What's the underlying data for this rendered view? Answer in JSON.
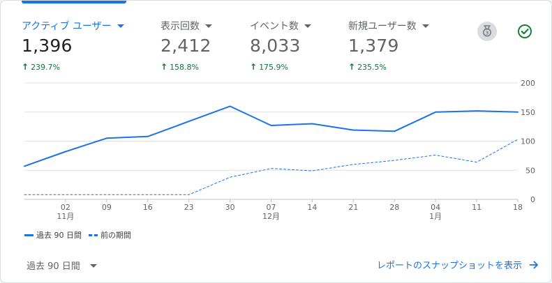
{
  "metrics": [
    {
      "label": "アクティブ ユーザー",
      "value": "1,396",
      "change": "239.7%",
      "active": true
    },
    {
      "label": "表示回数",
      "value": "2,412",
      "change": "158.8%",
      "active": false
    },
    {
      "label": "イベント数",
      "value": "8,033",
      "change": "175.9%",
      "active": false
    },
    {
      "label": "新規ユーザー数",
      "value": "1,379",
      "change": "235.5%",
      "active": false
    }
  ],
  "icons": {
    "insight": "insights-medal-icon",
    "status": "check-circle-icon"
  },
  "colors": {
    "accent": "#1a73e8",
    "positive": "#137333",
    "grid": "#e0e0e0"
  },
  "legend": {
    "current": "過去 90 日間",
    "previous": "前の期間"
  },
  "footer": {
    "range_label": "過去 90 日間",
    "snapshot_link": "レポートのスナップショットを表示"
  },
  "chart_data": {
    "type": "line",
    "x_ticks": [
      "02",
      "09",
      "16",
      "23",
      "30",
      "07",
      "14",
      "21",
      "28",
      "04",
      "11",
      "18"
    ],
    "month_labels": [
      {
        "tick": "02",
        "label": "11月"
      },
      {
        "tick": "07",
        "label": "12月"
      },
      {
        "tick": "04",
        "label": "1月"
      }
    ],
    "y_ticks": [
      0,
      50,
      100,
      150,
      200
    ],
    "ylim": [
      0,
      200
    ],
    "y_axis_position": "right",
    "grid": true,
    "series": [
      {
        "name": "過去 90 日間",
        "style": "solid",
        "values": [
          57,
          82,
          105,
          108,
          134,
          160,
          127,
          130,
          119,
          117,
          150,
          152,
          150
        ]
      },
      {
        "name": "前の期間",
        "style": "dashed",
        "values": [
          8,
          8,
          8,
          8,
          8,
          38,
          53,
          49,
          60,
          67,
          76,
          64,
          103
        ]
      }
    ]
  }
}
